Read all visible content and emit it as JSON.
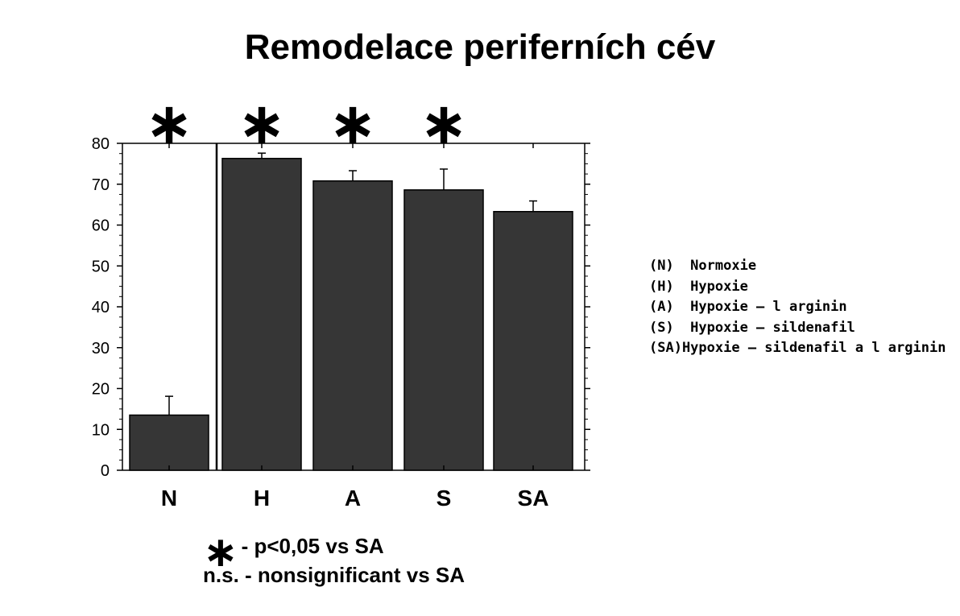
{
  "chart_data": {
    "type": "bar",
    "title": "Remodelace periferních cév",
    "categories": [
      "N",
      "H",
      "A",
      "S",
      "SA"
    ],
    "values": [
      13.5,
      76.3,
      70.8,
      68.6,
      63.3
    ],
    "errors": [
      4.6,
      1.3,
      2.5,
      5.1,
      2.6
    ],
    "significance": [
      "*",
      "*",
      "*",
      "*",
      ""
    ],
    "ylim": [
      0,
      80
    ],
    "yticks": [
      "0",
      "10",
      "20",
      "30",
      "40",
      "50",
      "60",
      "70",
      "80"
    ],
    "xlabel": "",
    "ylabel": "",
    "bar_color": "#363636",
    "grid": false
  },
  "legend": [
    "(N)  Normoxie",
    "(H)  Hypoxie",
    "(A)  Hypoxie – l arginin",
    "(S)  Hypoxie – sildenafil",
    "(SA)Hypoxie – sildenafil a l arginin"
  ],
  "footnotes": {
    "star_symbol": "∗",
    "star_text": " - p<0,05 vs SA",
    "ns_text": "n.s. - nonsignificant vs SA"
  }
}
